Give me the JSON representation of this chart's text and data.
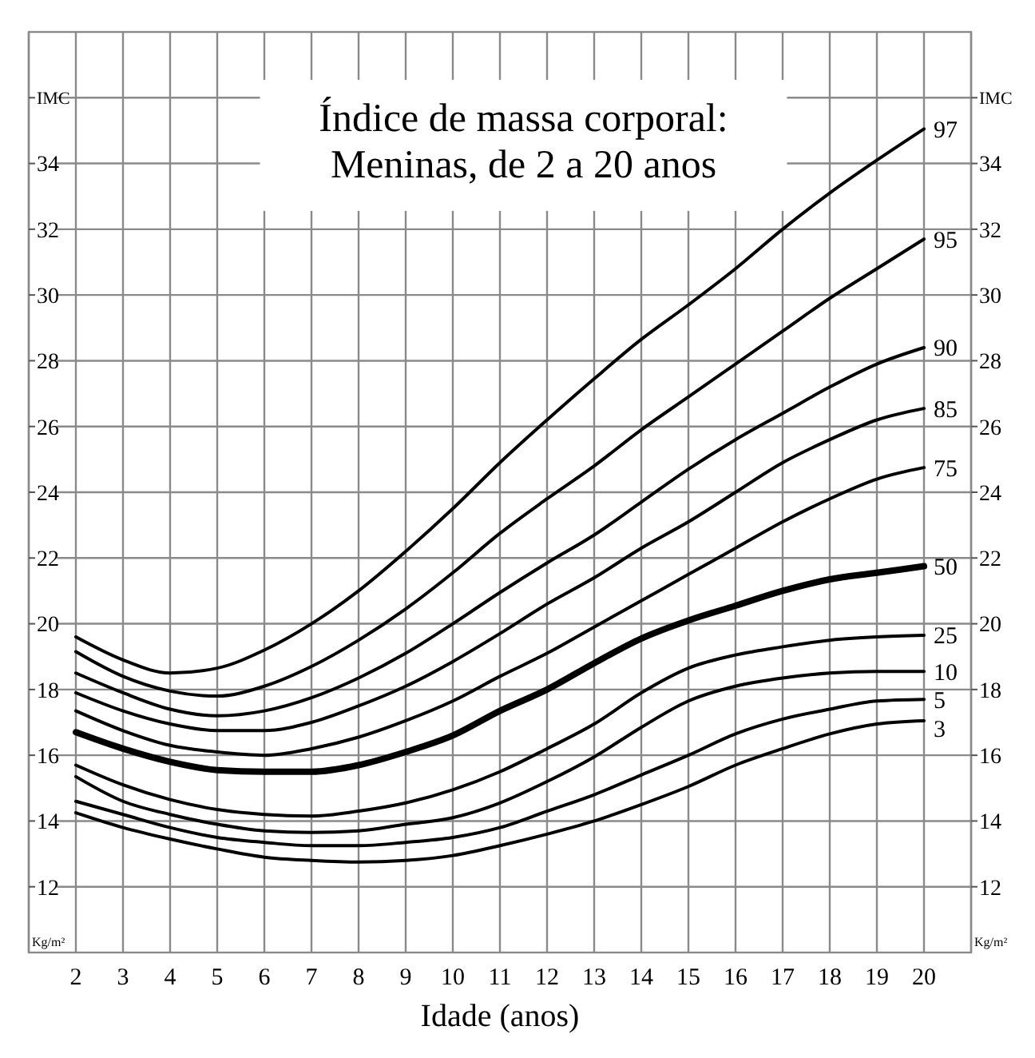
{
  "chart_data": {
    "type": "line",
    "title": "Índice de massa corporal:\nMeninas, de 2 a 20 anos",
    "xlabel": "Idade (anos)",
    "ylabel": "Kg/m²",
    "y2label": "Kg/m²",
    "x": [
      2,
      3,
      4,
      5,
      6,
      7,
      8,
      9,
      10,
      11,
      12,
      13,
      14,
      15,
      16,
      17,
      18,
      19,
      20
    ],
    "series": [
      {
        "name": "97",
        "color": "#000000",
        "values": [
          19.6,
          18.9,
          18.5,
          18.65,
          19.2,
          20.0,
          21.0,
          22.2,
          23.5,
          24.9,
          26.2,
          27.45,
          28.65,
          29.7,
          30.8,
          32.0,
          33.1,
          34.1,
          35.05
        ]
      },
      {
        "name": "95",
        "color": "#000000",
        "values": [
          19.15,
          18.4,
          17.95,
          17.8,
          18.1,
          18.7,
          19.5,
          20.45,
          21.55,
          22.75,
          23.8,
          24.8,
          25.9,
          26.9,
          27.9,
          28.9,
          29.9,
          30.8,
          31.7
        ]
      },
      {
        "name": "90",
        "color": "#000000",
        "values": [
          18.5,
          17.9,
          17.4,
          17.2,
          17.35,
          17.75,
          18.35,
          19.1,
          20.0,
          20.95,
          21.85,
          22.7,
          23.7,
          24.7,
          25.6,
          26.4,
          27.2,
          27.9,
          28.4
        ]
      },
      {
        "name": "85",
        "color": "#000000",
        "values": [
          17.9,
          17.35,
          16.95,
          16.75,
          16.75,
          17.0,
          17.5,
          18.1,
          18.85,
          19.7,
          20.6,
          21.4,
          22.3,
          23.1,
          24.0,
          24.9,
          25.6,
          26.2,
          26.55
        ]
      },
      {
        "name": "75",
        "color": "#000000",
        "values": [
          17.35,
          16.75,
          16.3,
          16.1,
          16.0,
          16.2,
          16.55,
          17.05,
          17.65,
          18.4,
          19.1,
          19.9,
          20.7,
          21.5,
          22.3,
          23.1,
          23.8,
          24.4,
          24.75
        ]
      },
      {
        "name": "50",
        "color": "#000000",
        "values": [
          16.7,
          16.2,
          15.8,
          15.55,
          15.5,
          15.5,
          15.7,
          16.1,
          16.6,
          17.35,
          18.0,
          18.8,
          19.55,
          20.1,
          20.55,
          21.0,
          21.35,
          21.55,
          21.75
        ]
      },
      {
        "name": "25",
        "color": "#000000",
        "values": [
          15.7,
          15.1,
          14.65,
          14.35,
          14.2,
          14.15,
          14.3,
          14.55,
          14.95,
          15.5,
          16.2,
          16.95,
          17.9,
          18.65,
          19.05,
          19.3,
          19.5,
          19.6,
          19.65
        ]
      },
      {
        "name": "10",
        "color": "#000000",
        "values": [
          15.35,
          14.6,
          14.2,
          13.9,
          13.7,
          13.65,
          13.7,
          13.9,
          14.1,
          14.55,
          15.2,
          15.95,
          16.85,
          17.65,
          18.1,
          18.35,
          18.5,
          18.55,
          18.55
        ]
      },
      {
        "name": "5",
        "color": "#000000",
        "values": [
          14.6,
          14.2,
          13.8,
          13.5,
          13.35,
          13.25,
          13.25,
          13.35,
          13.5,
          13.8,
          14.3,
          14.8,
          15.4,
          16.0,
          16.65,
          17.1,
          17.4,
          17.65,
          17.7
        ]
      },
      {
        "name": "3",
        "color": "#000000",
        "values": [
          14.25,
          13.8,
          13.45,
          13.15,
          12.9,
          12.8,
          12.75,
          12.8,
          12.95,
          13.25,
          13.6,
          14.0,
          14.5,
          15.05,
          15.7,
          16.2,
          16.65,
          16.95,
          17.05
        ]
      }
    ],
    "xlim": [
      1,
      21
    ],
    "xticks": [
      2,
      3,
      4,
      5,
      6,
      7,
      8,
      9,
      10,
      11,
      12,
      13,
      14,
      15,
      16,
      17,
      18,
      19,
      20
    ],
    "ylim": [
      10,
      38
    ],
    "yticks": [
      12,
      14,
      16,
      18,
      20,
      22,
      24,
      26,
      28,
      30,
      32,
      34,
      {
        "value": 36,
        "label": "IMC"
      }
    ],
    "y2lim": [
      10,
      38
    ],
    "y2ticks": [
      12,
      14,
      16,
      18,
      20,
      22,
      24,
      26,
      28,
      30,
      32,
      34,
      {
        "value": 36,
        "label": "IMC"
      }
    ],
    "grid": true,
    "marker": "none",
    "line_style": "solid"
  }
}
